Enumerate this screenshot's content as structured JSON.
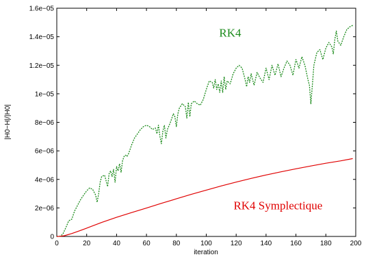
{
  "chart_data": {
    "type": "line",
    "xlabel": "iteration",
    "ylabel": "|H0−H|/|H0|",
    "xlim": [
      0,
      200
    ],
    "ylim": [
      0,
      1.6e-05
    ],
    "xticks": [
      0,
      20,
      40,
      60,
      80,
      100,
      120,
      140,
      160,
      180,
      200
    ],
    "xtick_labels": [
      "0",
      "20",
      "40",
      "60",
      "80",
      "100",
      "120",
      "140",
      "160",
      "180",
      "200"
    ],
    "yticks": [
      0,
      2e-06,
      4e-06,
      6e-06,
      8e-06,
      1e-05,
      1.2e-05,
      1.4e-05,
      1.6e-05
    ],
    "ytick_labels": [
      "0",
      "2e−06",
      "4e−06",
      "6e−06",
      "8e−06",
      "1e−05",
      "1.2e−05",
      "1.4e−05",
      "1.6e−05"
    ],
    "grid": false,
    "series": [
      {
        "name": "RK4",
        "color": "#1a8a1a",
        "style": "dotted",
        "x": [
          0,
          2,
          4,
          6,
          8,
          10,
          12,
          14,
          16,
          18,
          20,
          22,
          24,
          26,
          27,
          28,
          29,
          30,
          32,
          34,
          35,
          36,
          37,
          38,
          39,
          40,
          41,
          42,
          43,
          44,
          45,
          46,
          47,
          48,
          50,
          52,
          54,
          56,
          58,
          60,
          62,
          64,
          66,
          67,
          68,
          69,
          70,
          71,
          72,
          73,
          74,
          76,
          78,
          79,
          80,
          81,
          82,
          84,
          86,
          87,
          88,
          89,
          90,
          92,
          94,
          96,
          98,
          100,
          102,
          104,
          105,
          106,
          107,
          108,
          109,
          110,
          111,
          112,
          113,
          114,
          116,
          118,
          120,
          122,
          124,
          126,
          127,
          128,
          129,
          130,
          132,
          134,
          136,
          138,
          140,
          142,
          144,
          146,
          148,
          150,
          152,
          154,
          156,
          158,
          160,
          162,
          164,
          166,
          168,
          169,
          170,
          171,
          172,
          174,
          176,
          178,
          180,
          182,
          184,
          185,
          186,
          187,
          188,
          190,
          192,
          194,
          196,
          198
        ],
        "y": [
          0,
          1e-08,
          1.5e-07,
          6e-07,
          1.1e-06,
          1.2e-06,
          1.8e-06,
          2.2e-06,
          2.6e-06,
          2.9e-06,
          3.2e-06,
          3.4e-06,
          3.3e-06,
          2.9e-06,
          2.4e-06,
          3e-06,
          3.8e-06,
          4.2e-06,
          4.3e-06,
          3.5e-06,
          4.4e-06,
          4.6e-06,
          4.2e-06,
          4.7e-06,
          3.8e-06,
          4.9e-06,
          4.6e-06,
          5.1e-06,
          4.5e-06,
          5.3e-06,
          5.6e-06,
          5.7e-06,
          5.6e-06,
          5.8e-06,
          6.4e-06,
          6.9e-06,
          7.2e-06,
          7.5e-06,
          7.7e-06,
          7.8e-06,
          7.7e-06,
          7.5e-06,
          7.6e-06,
          7.2e-06,
          7.8e-06,
          7e-06,
          6.5e-06,
          7.4e-06,
          7.8e-06,
          6.9e-06,
          7.5e-06,
          8e-06,
          8.6e-06,
          8.4e-06,
          7.7e-06,
          8.6e-06,
          9e-06,
          9.3e-06,
          9.1e-06,
          8.3e-06,
          9.4e-06,
          8.4e-06,
          9.3e-06,
          9.5e-06,
          9.3e-06,
          9.2e-06,
          9.6e-06,
          1.03e-05,
          1.09e-05,
          1.08e-05,
          1.04e-05,
          1.1e-05,
          1.03e-05,
          1.07e-05,
          1.01e-05,
          1.09e-05,
          1.01e-05,
          1.12e-05,
          1.03e-05,
          1.09e-05,
          1.07e-05,
          1.14e-05,
          1.18e-05,
          1.2e-05,
          1.18e-05,
          1.1e-05,
          1.05e-05,
          1.12e-05,
          1.08e-05,
          1.14e-05,
          1.06e-05,
          1.15e-05,
          1.11e-05,
          1.08e-05,
          1.18e-05,
          1.1e-05,
          1.2e-05,
          1.13e-05,
          1.21e-05,
          1.12e-05,
          1.18e-05,
          1.23e-05,
          1.2e-05,
          1.13e-05,
          1.24e-05,
          1.18e-05,
          1.26e-05,
          1.2e-05,
          1.1e-05,
          1.06e-05,
          9.3e-06,
          1.06e-05,
          1.2e-05,
          1.29e-05,
          1.31e-05,
          1.24e-05,
          1.32e-05,
          1.36e-05,
          1.33e-05,
          1.28e-05,
          1.38e-05,
          1.44e-05,
          1.37e-05,
          1.34e-05,
          1.4e-05,
          1.45e-05,
          1.47e-05,
          1.48e-05
        ]
      },
      {
        "name": "RK4 Symplectique",
        "color": "#e00000",
        "style": "solid",
        "x": [
          0,
          2,
          5,
          10,
          15,
          20,
          30,
          40,
          50,
          60,
          70,
          80,
          90,
          100,
          110,
          120,
          130,
          140,
          150,
          160,
          170,
          180,
          190,
          198
        ],
        "y": [
          0,
          5e-09,
          5e-08,
          2e-07,
          3.9e-07,
          5.8e-07,
          9.8e-07,
          1.34e-06,
          1.67e-06,
          1.99e-06,
          2.32e-06,
          2.64e-06,
          2.95e-06,
          3.25e-06,
          3.54e-06,
          3.81e-06,
          4.07e-06,
          4.31e-06,
          4.53e-06,
          4.74e-06,
          4.94e-06,
          5.13e-06,
          5.3e-06,
          5.46e-06
        ]
      }
    ],
    "annotations": [
      {
        "text": "RK4",
        "color": "#1a8a1a",
        "x": 116,
        "y": 1.4e-05
      },
      {
        "text": "RK4 Symplectique",
        "color": "#e00000",
        "x": 148,
        "y": 1.9e-06
      }
    ]
  }
}
